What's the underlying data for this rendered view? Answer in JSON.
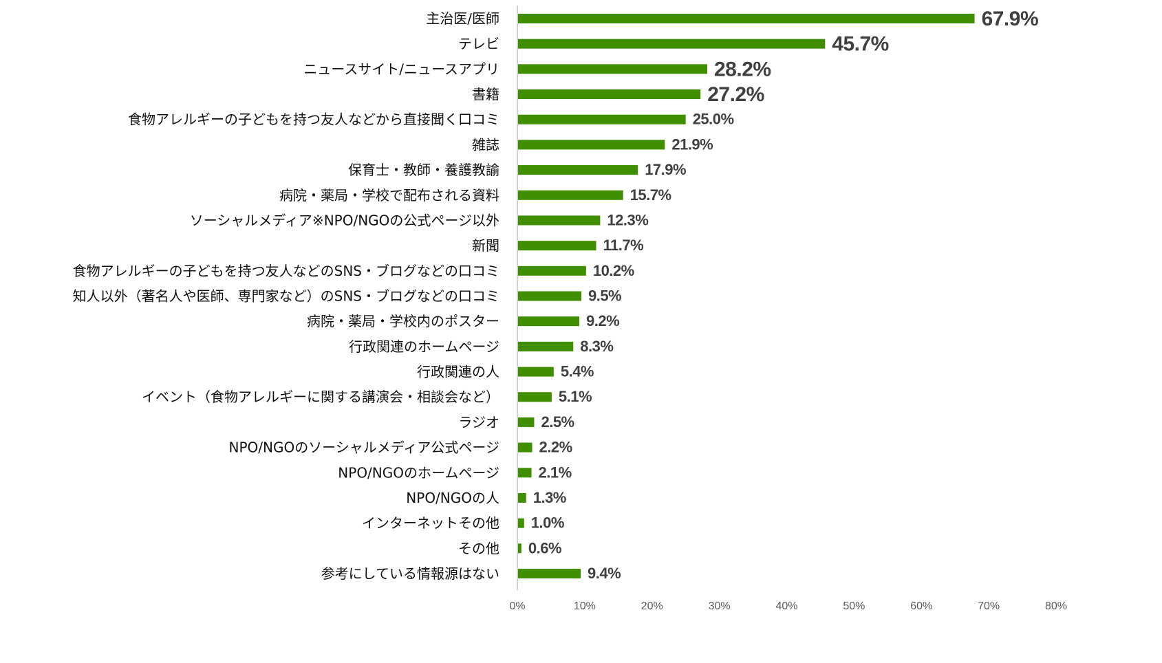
{
  "chart_data": {
    "type": "bar",
    "orientation": "horizontal",
    "categories": [
      "主治医/医師",
      "テレビ",
      "ニュースサイト/ニュースアプリ",
      "書籍",
      "食物アレルギーの子どもを持つ友人などから直接聞く口コミ",
      "雑誌",
      "保育士・教師・養護教諭",
      "病院・薬局・学校で配布される資料",
      "ソーシャルメディア※NPO/NGOの公式ページ以外",
      "新聞",
      "食物アレルギーの子どもを持つ友人などのSNS・ブログなどの口コミ",
      "知人以外（著名人や医師、専門家など）のSNS・ブログなどの口コミ",
      "病院・薬局・学校内のポスター",
      "行政関連のホームページ",
      "行政関連の人",
      "イベント（食物アレルギーに関する講演会・相談会など）",
      "ラジオ",
      "NPO/NGOのソーシャルメディア公式ページ",
      "NPO/NGOのホームページ",
      "NPO/NGOの人",
      "インターネットその他",
      "その他",
      "参考にしている情報源はない"
    ],
    "values": [
      67.9,
      45.7,
      28.2,
      27.2,
      25.0,
      21.9,
      17.9,
      15.7,
      12.3,
      11.7,
      10.2,
      9.5,
      9.2,
      8.3,
      5.4,
      5.1,
      2.5,
      2.2,
      2.1,
      1.3,
      1.0,
      0.6,
      9.4
    ],
    "data_labels": [
      "67.9%",
      "45.7%",
      "28.2%",
      "27.2%",
      "25.0%",
      "21.9%",
      "17.9%",
      "15.7%",
      "12.3%",
      "11.7%",
      "10.2%",
      "9.5%",
      "9.2%",
      "8.3%",
      "5.4%",
      "5.1%",
      "2.5%",
      "2.2%",
      "2.1%",
      "1.3%",
      "1.0%",
      "0.6%",
      "9.4%"
    ],
    "xlim": [
      0,
      80
    ],
    "xticks": [
      "0%",
      "10%",
      "20%",
      "30%",
      "40%",
      "50%",
      "60%",
      "70%",
      "80%"
    ],
    "grid": false,
    "legend": "none",
    "bar_color": "#3f8f00",
    "label_color": "#404040",
    "title": "",
    "xlabel": "",
    "ylabel": ""
  }
}
